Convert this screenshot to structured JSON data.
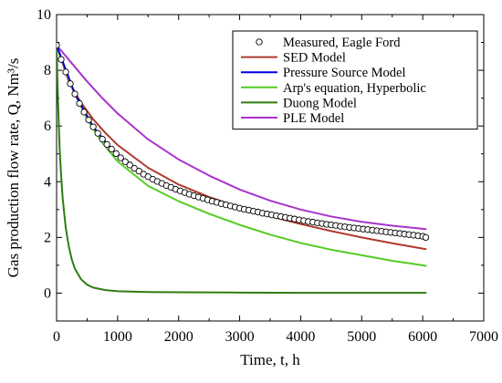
{
  "chart_data": {
    "type": "line",
    "title": "",
    "xlabel": "Time, t, h",
    "ylabel": "Gas production flow rate, Q, Nm³/s",
    "xlim": [
      0,
      7000
    ],
    "ylim": [
      -1,
      10
    ],
    "xticks": [
      0,
      1000,
      2000,
      3000,
      4000,
      5000,
      6000,
      7000
    ],
    "yticks": [
      0,
      2,
      4,
      6,
      8,
      10
    ],
    "grid": false,
    "legend_position": "top-right",
    "series": [
      {
        "name": "Measured, Eagle Ford",
        "style": "markers",
        "color": "#000000",
        "x": [
          0,
          75,
          150,
          225,
          300,
          375,
          450,
          525,
          600,
          675,
          750,
          825,
          900,
          975,
          1050,
          1125,
          1200,
          1275,
          1350,
          1425,
          1500,
          1575,
          1650,
          1725,
          1800,
          1875,
          1950,
          2025,
          2100,
          2175,
          2250,
          2325,
          2400,
          2475,
          2550,
          2625,
          2700,
          2775,
          2850,
          2925,
          3000,
          3075,
          3150,
          3225,
          3300,
          3375,
          3450,
          3525,
          3600,
          3675,
          3750,
          3825,
          3900,
          3975,
          4050,
          4125,
          4200,
          4275,
          4350,
          4425,
          4500,
          4575,
          4650,
          4725,
          4800,
          4875,
          4950,
          5025,
          5100,
          5175,
          5250,
          5325,
          5400,
          5475,
          5550,
          5625,
          5700,
          5775,
          5850,
          5925,
          6000,
          6050
        ],
        "y": [
          8.9,
          8.39,
          7.94,
          7.52,
          7.15,
          6.81,
          6.5,
          6.22,
          5.97,
          5.74,
          5.53,
          5.34,
          5.17,
          5.01,
          4.86,
          4.72,
          4.6,
          4.48,
          4.38,
          4.27,
          4.18,
          4.09,
          4.01,
          3.94,
          3.86,
          3.8,
          3.73,
          3.67,
          3.61,
          3.55,
          3.5,
          3.45,
          3.4,
          3.35,
          3.3,
          3.26,
          3.21,
          3.17,
          3.13,
          3.09,
          3.05,
          3.01,
          2.98,
          2.94,
          2.91,
          2.87,
          2.84,
          2.81,
          2.78,
          2.75,
          2.72,
          2.69,
          2.66,
          2.63,
          2.6,
          2.57,
          2.55,
          2.52,
          2.5,
          2.47,
          2.45,
          2.43,
          2.4,
          2.38,
          2.36,
          2.34,
          2.32,
          2.3,
          2.28,
          2.26,
          2.24,
          2.22,
          2.2,
          2.18,
          2.16,
          2.14,
          2.12,
          2.1,
          2.08,
          2.06,
          2.04,
          2.0
        ]
      },
      {
        "name": "SED Model",
        "style": "line",
        "color": "#b03a2e",
        "x": [
          0,
          200,
          400,
          600,
          800,
          1000,
          1500,
          2000,
          2500,
          3000,
          3500,
          4000,
          4500,
          5000,
          5500,
          6000,
          6050
        ],
        "y": [
          8.9,
          7.6,
          6.84,
          6.24,
          5.75,
          5.32,
          4.5,
          3.9,
          3.45,
          3.08,
          2.76,
          2.48,
          2.23,
          2.0,
          1.79,
          1.6,
          1.58
        ]
      },
      {
        "name": "Pressure Source Model",
        "style": "line",
        "color": "#0000dd",
        "x": [
          0,
          300,
          600,
          900,
          1200,
          1500,
          2000,
          2500,
          3000,
          3500,
          4000,
          4500,
          5000,
          5500,
          6000,
          6050
        ],
        "y": [
          8.9,
          7.15,
          5.97,
          5.17,
          4.6,
          4.18,
          3.67,
          3.3,
          3.05,
          2.8,
          2.6,
          2.45,
          2.3,
          2.14,
          2.04,
          2.03
        ]
      },
      {
        "name": "Arp's equation, Hyperbolic",
        "style": "line",
        "color": "#55cc22",
        "x": [
          0,
          250,
          500,
          750,
          1000,
          1500,
          2000,
          2500,
          3000,
          3500,
          4000,
          4500,
          5000,
          5500,
          6000,
          6050
        ],
        "y": [
          8.9,
          7.38,
          6.25,
          5.4,
          4.73,
          3.85,
          3.3,
          2.85,
          2.45,
          2.1,
          1.8,
          1.56,
          1.36,
          1.16,
          1.0,
          0.98
        ]
      },
      {
        "name": "Duong Model",
        "style": "line",
        "color": "#2e7d10",
        "x": [
          0,
          10,
          25,
          50,
          75,
          100,
          150,
          200,
          250,
          300,
          400,
          500,
          600,
          800,
          1000,
          1500,
          2000,
          3000,
          4000,
          5000,
          6000,
          6050
        ],
        "y": [
          8.9,
          8.0,
          6.8,
          5.2,
          4.2,
          3.4,
          2.35,
          1.68,
          1.2,
          0.88,
          0.5,
          0.3,
          0.2,
          0.11,
          0.07,
          0.04,
          0.03,
          0.02,
          0.01,
          0.01,
          0.01,
          0.01
        ]
      },
      {
        "name": "PLE Model",
        "style": "line",
        "color": "#aa33cc",
        "x": [
          0,
          250,
          500,
          750,
          1000,
          1500,
          2000,
          2500,
          3000,
          3500,
          4000,
          4500,
          5000,
          5500,
          6000,
          6050
        ],
        "y": [
          8.9,
          8.25,
          7.6,
          7.0,
          6.45,
          5.52,
          4.8,
          4.22,
          3.72,
          3.32,
          3.0,
          2.75,
          2.56,
          2.42,
          2.31,
          2.3
        ]
      }
    ]
  }
}
